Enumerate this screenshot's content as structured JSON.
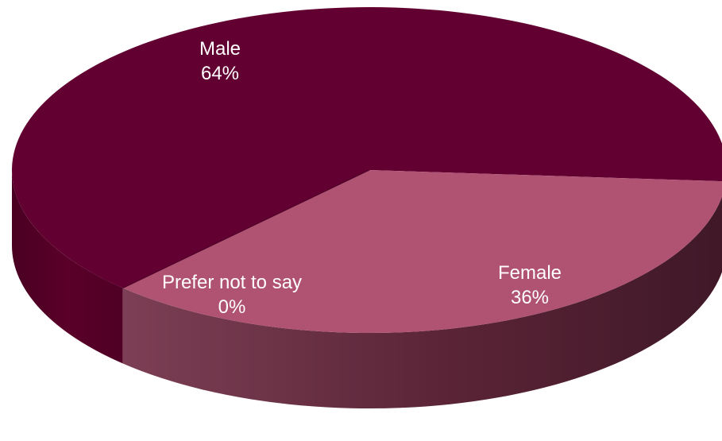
{
  "chart_data": {
    "type": "pie",
    "style": "3d",
    "categories": [
      "Male",
      "Female",
      "Prefer not to say"
    ],
    "values": [
      64,
      36,
      0
    ],
    "percent_labels": [
      "64%",
      "36%",
      "0%"
    ],
    "colors": [
      "#620032",
      "#b05272",
      "#4a0027"
    ],
    "side_colors": {
      "Male": "#560027",
      "Female": "#5a2134"
    },
    "legend": "none",
    "title": ""
  }
}
